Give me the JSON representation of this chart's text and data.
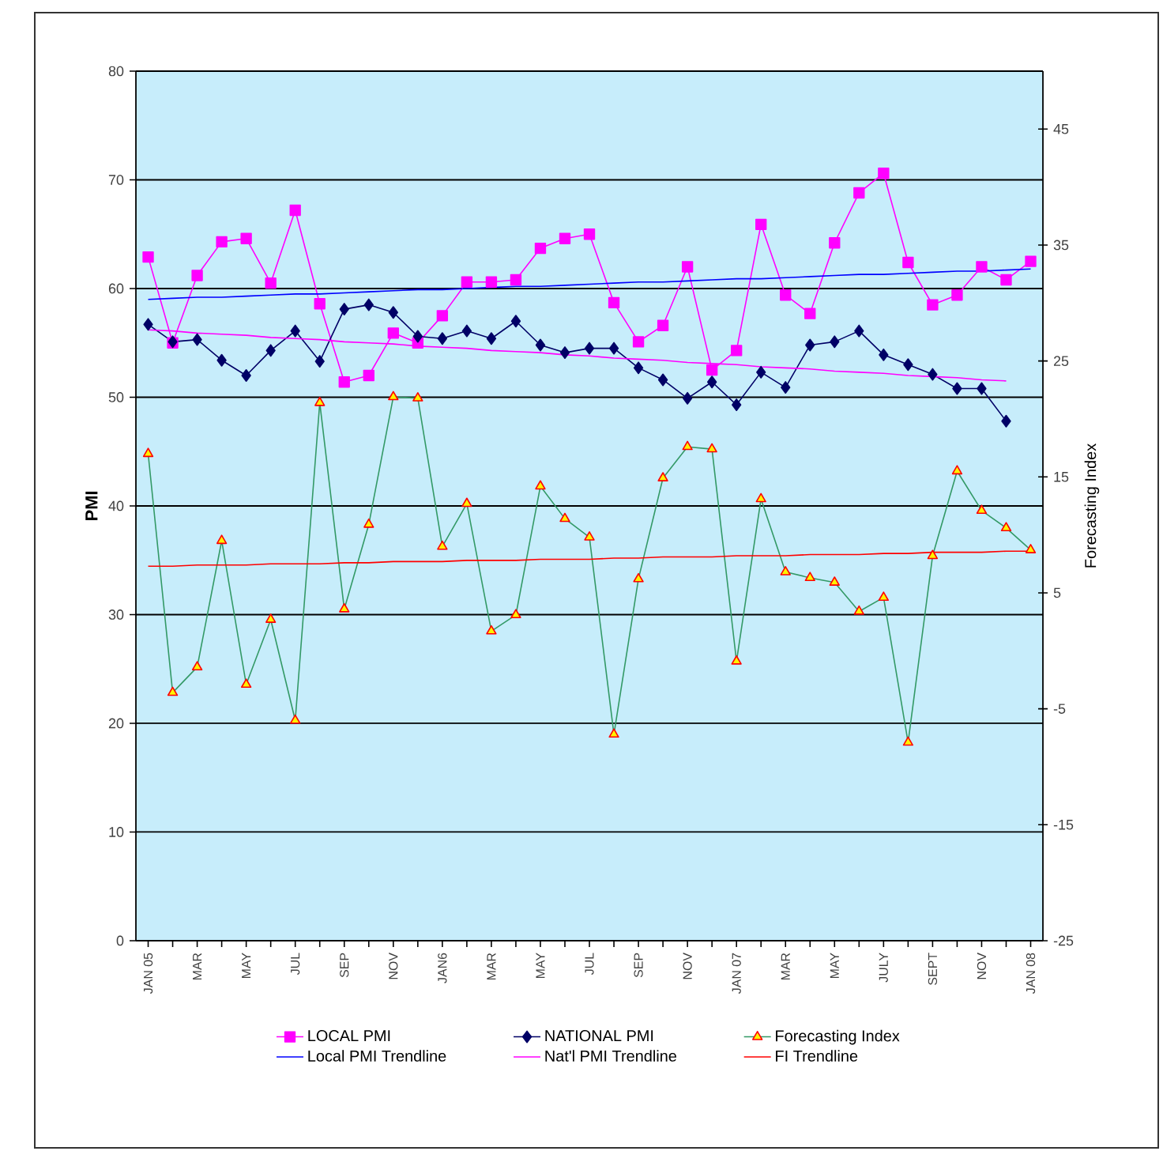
{
  "chart_data": {
    "type": "line",
    "ylabel": "PMI",
    "y2label": "Forecasting Index",
    "categories": [
      "JAN 05",
      null,
      "MAR",
      null,
      "MAY",
      null,
      "JUL",
      null,
      "SEP",
      null,
      "NOV",
      null,
      "JAN6",
      null,
      "MAR",
      null,
      "MAY",
      null,
      "JUL",
      null,
      "SEP",
      null,
      "NOV",
      null,
      "JAN 07",
      null,
      "MAR",
      null,
      "MAY",
      null,
      "JULY",
      null,
      "SEPT",
      null,
      "NOV",
      null,
      "JAN 08"
    ],
    "ylim": [
      0,
      80
    ],
    "yticks": [
      0,
      10,
      20,
      30,
      40,
      50,
      60,
      70,
      80
    ],
    "y2lim": [
      -25,
      50
    ],
    "y2ticks": [
      -25,
      -15,
      -5,
      5,
      15,
      25,
      35,
      45
    ],
    "grid": "y",
    "legend": "bottom",
    "series": [
      {
        "name": "LOCAL PMI",
        "color": "#ff00ff",
        "marker": "square",
        "values": [
          62.9,
          55.0,
          61.2,
          64.3,
          64.6,
          60.5,
          67.2,
          58.6,
          51.4,
          52.0,
          55.9,
          55.0,
          57.5,
          60.6,
          60.6,
          60.8,
          63.7,
          64.6,
          65.0,
          58.7,
          55.1,
          56.6,
          62.0,
          52.5,
          54.3,
          65.9,
          59.4,
          57.7,
          64.2,
          68.8,
          70.6,
          62.4,
          58.5,
          59.4,
          62.0,
          60.8,
          62.5
        ]
      },
      {
        "name": "NATIONAL PMI",
        "color": "#000066",
        "marker": "diamond",
        "values": [
          56.7,
          55.1,
          55.3,
          53.4,
          52.0,
          54.3,
          56.1,
          53.3,
          58.1,
          58.5,
          57.8,
          55.6,
          55.4,
          56.1,
          55.4,
          57.0,
          54.8,
          54.1,
          54.5,
          54.5,
          52.7,
          51.6,
          49.9,
          51.4,
          49.3,
          52.3,
          50.9,
          54.8,
          55.1,
          56.1,
          53.9,
          53.0,
          52.1,
          50.8,
          50.8,
          47.8,
          null
        ]
      },
      {
        "name": "Forecasting Index",
        "color": "#339966",
        "marker": "triangle",
        "axis": "y2",
        "values": [
          17.0,
          -3.6,
          -1.4,
          9.5,
          -2.9,
          2.7,
          -6.0,
          21.4,
          3.6,
          10.9,
          21.9,
          21.8,
          9.0,
          12.7,
          1.7,
          3.1,
          14.2,
          11.4,
          9.8,
          -7.2,
          6.2,
          14.9,
          17.6,
          17.4,
          -0.9,
          13.1,
          6.8,
          6.3,
          5.9,
          3.4,
          4.6,
          -7.9,
          8.2,
          15.5,
          12.1,
          10.6,
          8.7
        ]
      },
      {
        "name": "Local PMI Trendline",
        "color": "#0000ff",
        "marker": "none",
        "values": [
          59.0,
          59.1,
          59.2,
          59.2,
          59.3,
          59.4,
          59.5,
          59.5,
          59.6,
          59.7,
          59.8,
          59.9,
          59.9,
          60.0,
          60.1,
          60.2,
          60.2,
          60.3,
          60.4,
          60.5,
          60.6,
          60.6,
          60.7,
          60.8,
          60.9,
          60.9,
          61.0,
          61.1,
          61.2,
          61.3,
          61.3,
          61.4,
          61.5,
          61.6,
          61.6,
          61.7,
          61.8
        ]
      },
      {
        "name": "Nat'l PMI Trendline",
        "color": "#ff00ff",
        "marker": "none",
        "values": [
          56.2,
          56.1,
          55.9,
          55.8,
          55.7,
          55.5,
          55.4,
          55.3,
          55.1,
          55.0,
          54.9,
          54.7,
          54.6,
          54.5,
          54.3,
          54.2,
          54.1,
          53.9,
          53.8,
          53.6,
          53.5,
          53.4,
          53.2,
          53.1,
          53.0,
          52.8,
          52.7,
          52.6,
          52.4,
          52.3,
          52.2,
          52.0,
          51.9,
          51.8,
          51.6,
          51.5,
          null
        ]
      },
      {
        "name": "FI Trendline",
        "color": "#ff0000",
        "marker": "none",
        "axis": "y2",
        "values": [
          7.3,
          7.3,
          7.4,
          7.4,
          7.4,
          7.5,
          7.5,
          7.5,
          7.6,
          7.6,
          7.7,
          7.7,
          7.7,
          7.8,
          7.8,
          7.8,
          7.9,
          7.9,
          7.9,
          8.0,
          8.0,
          8.1,
          8.1,
          8.1,
          8.2,
          8.2,
          8.2,
          8.3,
          8.3,
          8.3,
          8.4,
          8.4,
          8.5,
          8.5,
          8.5,
          8.6,
          8.6
        ]
      }
    ]
  }
}
